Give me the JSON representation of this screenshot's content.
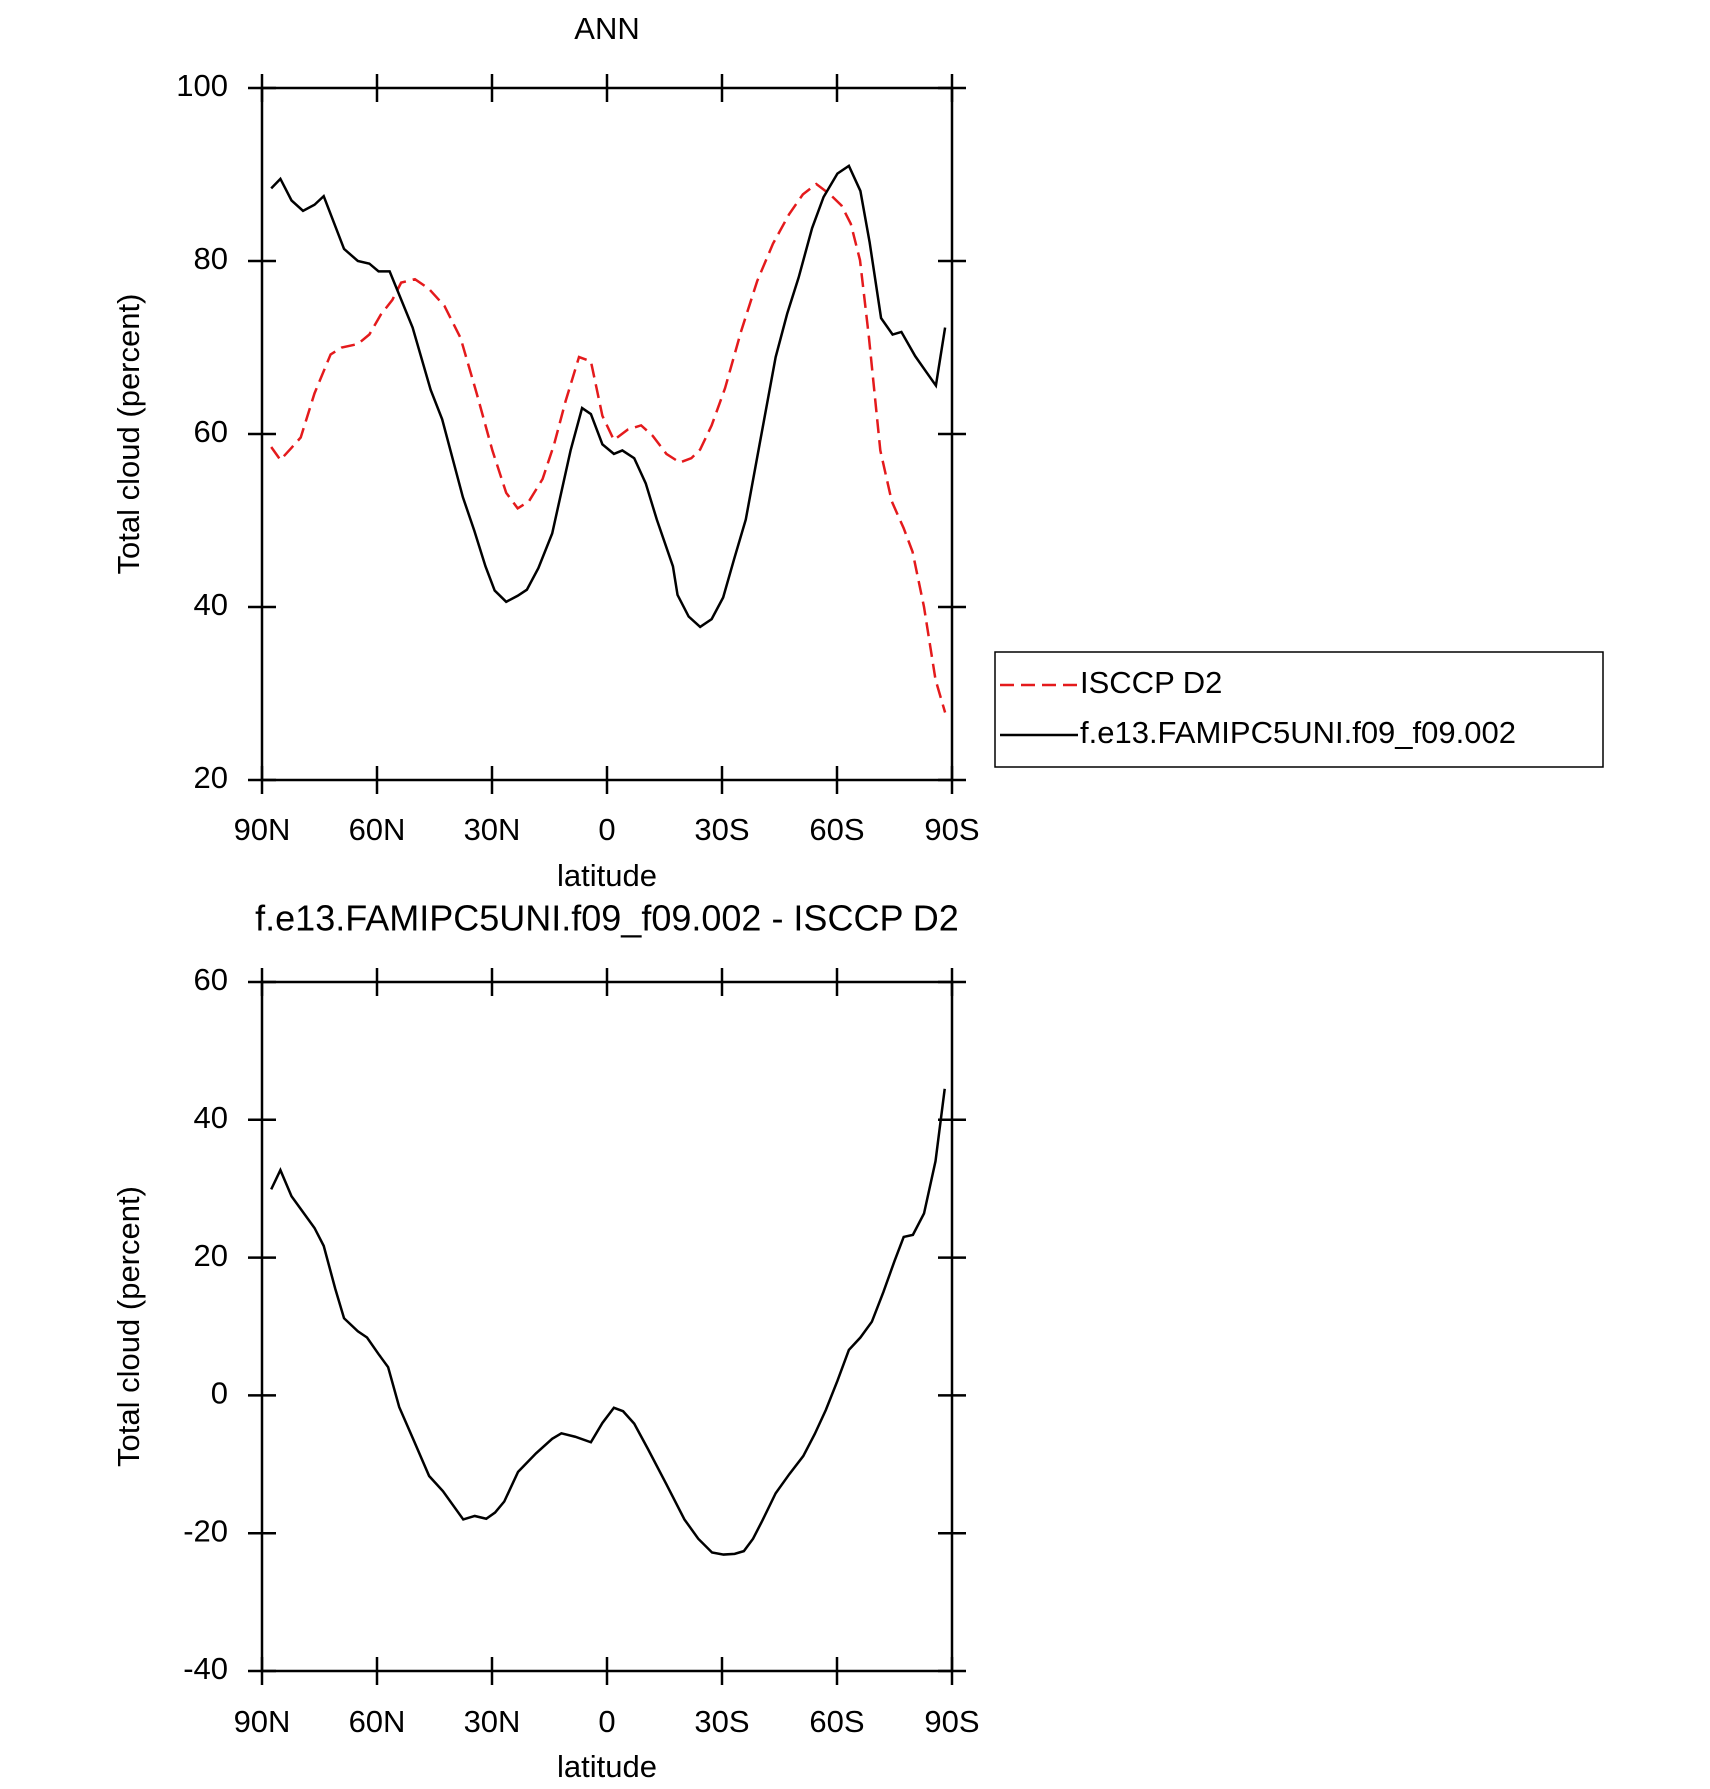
{
  "chart_data": [
    {
      "type": "line",
      "title": "ANN",
      "xlabel": "latitude",
      "ylabel": "Total cloud (percent)",
      "xlim": [
        90,
        -90
      ],
      "ylim": [
        20,
        100
      ],
      "xticks": [
        {
          "value": 90,
          "label": "90N"
        },
        {
          "value": 60,
          "label": "60N"
        },
        {
          "value": 30,
          "label": "30N"
        },
        0,
        {
          "value": -30,
          "label": "30S"
        },
        {
          "value": -60,
          "label": "60S"
        },
        {
          "value": -90,
          "label": "90S"
        }
      ],
      "yticks": [
        20,
        40,
        60,
        80,
        100
      ],
      "legend": "right",
      "series": [
        {
          "name": "ISCCP D2",
          "color": "#e41a1c",
          "line_style": "dashed",
          "x": [
            87.6,
            85.2,
            82.3,
            79.9,
            76.3,
            72.1,
            69.2,
            65.0,
            62.0,
            59.0,
            56.0,
            53.7,
            50.1,
            46.5,
            42.4,
            38.2,
            34.0,
            29.9,
            26.3,
            23.3,
            20.4,
            16.8,
            13.8,
            10.8,
            7.3,
            4.2,
            1.2,
            -1.8,
            -5.4,
            -8.9,
            -11.9,
            -15.5,
            -19.0,
            -22.0,
            -24.3,
            -27.3,
            -30.8,
            -35.0,
            -39.2,
            -43.3,
            -47.5,
            -51.1,
            -54.6,
            -58.2,
            -61.2,
            -63.6,
            -66.0,
            -68.3,
            -71.3,
            -74.3,
            -77.4,
            -79.7,
            -82.7,
            -85.7,
            -88.2
          ],
          "values": [
            58.5,
            57.0,
            58.4,
            59.6,
            64.7,
            69.2,
            70.0,
            70.4,
            71.5,
            73.8,
            75.5,
            77.5,
            77.9,
            76.8,
            74.8,
            71.1,
            64.7,
            58.1,
            53.2,
            51.4,
            52.2,
            54.8,
            58.8,
            63.8,
            68.9,
            68.4,
            62.1,
            59.3,
            60.5,
            61.0,
            59.8,
            57.7,
            56.7,
            57.2,
            58.2,
            61.0,
            65.3,
            71.9,
            77.7,
            82.0,
            85.4,
            87.7,
            88.9,
            87.7,
            86.4,
            84.3,
            80.1,
            71.3,
            58.1,
            52.2,
            49.1,
            46.4,
            40.0,
            31.6,
            27.8
          ]
        },
        {
          "name": "f.e13.FAMIPC5UNI.f09_f09.002",
          "color": "#000000",
          "line_style": "solid",
          "x": [
            87.6,
            85.2,
            82.3,
            79.3,
            76.3,
            73.9,
            68.6,
            65.0,
            62.0,
            59.6,
            56.7,
            50.7,
            46.0,
            43.0,
            37.6,
            34.6,
            31.7,
            29.3,
            26.3,
            23.3,
            20.9,
            17.9,
            14.3,
            9.5,
            6.5,
            4.2,
            1.2,
            -1.8,
            -4.0,
            -7.1,
            -10.1,
            -13.0,
            -17.2,
            -18.4,
            -21.3,
            -24.3,
            -27.3,
            -30.3,
            -33.2,
            -36.2,
            -39.8,
            -44.0,
            -47.0,
            -50.0,
            -53.5,
            -56.5,
            -60.1,
            -63.1,
            -66.1,
            -68.5,
            -71.5,
            -74.5,
            -76.8,
            -80.4,
            -83.4,
            -85.8,
            -88.2
          ],
          "values": [
            88.4,
            89.5,
            87.0,
            85.8,
            86.5,
            87.5,
            81.4,
            80.0,
            79.7,
            78.8,
            78.8,
            72.3,
            65.1,
            61.7,
            52.7,
            48.8,
            44.7,
            41.9,
            40.6,
            41.3,
            42.0,
            44.5,
            48.5,
            58.1,
            63.0,
            62.3,
            58.8,
            57.7,
            58.1,
            57.2,
            54.3,
            50.1,
            44.7,
            41.4,
            38.9,
            37.7,
            38.6,
            41.1,
            45.6,
            50.1,
            58.8,
            68.9,
            73.9,
            78.1,
            83.8,
            87.4,
            90.1,
            91.0,
            88.1,
            82.2,
            73.4,
            71.5,
            71.8,
            69.0,
            67.1,
            65.6,
            72.3
          ]
        }
      ]
    },
    {
      "type": "line",
      "title": "f.e13.FAMIPC5UNI.f09_f09.002 - ISCCP D2",
      "xlabel": "latitude",
      "ylabel": "Total cloud (percent)",
      "xlim": [
        90,
        -90
      ],
      "ylim": [
        -40,
        60
      ],
      "xticks": [
        {
          "value": 90,
          "label": "90N"
        },
        {
          "value": 60,
          "label": "60N"
        },
        {
          "value": 30,
          "label": "30N"
        },
        0,
        {
          "value": -30,
          "label": "30S"
        },
        {
          "value": -60,
          "label": "60S"
        },
        {
          "value": -90,
          "label": "90S"
        }
      ],
      "yticks": [
        -40,
        -20,
        0,
        20,
        40,
        60
      ],
      "series": [
        {
          "color": "#000000",
          "line_style": "solid",
          "x": [
            87.6,
            85.2,
            82.3,
            79.3,
            76.3,
            73.9,
            70.9,
            68.6,
            65.0,
            62.6,
            59.6,
            57.1,
            54.2,
            50.6,
            46.4,
            42.8,
            37.5,
            34.5,
            31.5,
            29.2,
            26.8,
            23.2,
            18.5,
            14.3,
            11.9,
            8.3,
            4.2,
            1.2,
            -1.8,
            -4.2,
            -7.1,
            -10.7,
            -15.5,
            -20.2,
            -23.8,
            -27.4,
            -30.4,
            -33.3,
            -35.7,
            -38.1,
            -40.5,
            -44.0,
            -47.6,
            -51.2,
            -54.2,
            -57.1,
            -60.1,
            -63.1,
            -66.1,
            -69.1,
            -72.1,
            -75.0,
            -77.4,
            -79.8,
            -82.7,
            -85.7,
            -88.1
          ],
          "values": [
            29.9,
            32.7,
            28.9,
            26.6,
            24.3,
            21.7,
            15.5,
            11.2,
            9.3,
            8.4,
            6.0,
            4.1,
            -1.7,
            -6.3,
            -11.7,
            -13.9,
            -18.0,
            -17.5,
            -17.9,
            -17.0,
            -15.4,
            -11.1,
            -8.4,
            -6.3,
            -5.5,
            -6.0,
            -6.8,
            -4.0,
            -1.8,
            -2.3,
            -4.1,
            -7.8,
            -12.9,
            -18.0,
            -20.8,
            -22.8,
            -23.1,
            -23.0,
            -22.6,
            -20.8,
            -18.2,
            -14.2,
            -11.4,
            -8.8,
            -5.6,
            -2.1,
            2.1,
            6.6,
            8.4,
            10.7,
            15.0,
            19.5,
            23.0,
            23.3,
            26.4,
            34.0,
            44.5
          ]
        }
      ]
    }
  ]
}
